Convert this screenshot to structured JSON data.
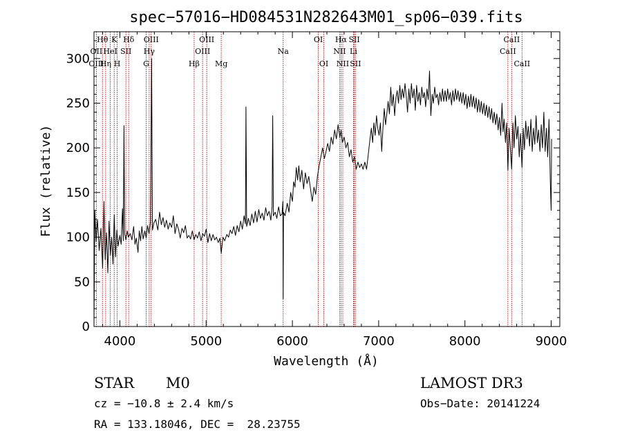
{
  "chart_data": {
    "type": "line",
    "title": "spec−57016−HD084531N282643M01_sp06−039.fits",
    "xlabel": "Wavelength (Å)",
    "ylabel": "Flux (relative)",
    "xlim": [
      3700,
      9100
    ],
    "ylim": [
      0,
      330
    ],
    "x_ticks": [
      4000,
      5000,
      6000,
      7000,
      8000,
      9000
    ],
    "y_ticks": [
      0,
      50,
      100,
      150,
      200,
      250,
      300
    ],
    "grid": false,
    "line_colors": {
      "spectrum": "#000000",
      "lines": "#c00000"
    },
    "spectral_lines": [
      {
        "label": "Hθ",
        "wavelength": 3798,
        "row": 0
      },
      {
        "label": "OII",
        "wavelength": 3727,
        "row": 1
      },
      {
        "label": "OIII",
        "wavelength": 3727,
        "row": 2
      },
      {
        "label": "K",
        "wavelength": 3934,
        "row": 0
      },
      {
        "label": "HeI",
        "wavelength": 3889,
        "row": 1
      },
      {
        "label": "Hη",
        "wavelength": 3835,
        "row": 2
      },
      {
        "label": "Hδ",
        "wavelength": 4102,
        "row": 0
      },
      {
        "label": "SII",
        "wavelength": 4070,
        "row": 1
      },
      {
        "label": "H",
        "wavelength": 3969,
        "row": 2
      },
      {
        "label": "OIII",
        "wavelength": 4363,
        "row": 0
      },
      {
        "label": "Hγ",
        "wavelength": 4340,
        "row": 1
      },
      {
        "label": "G",
        "wavelength": 4305,
        "row": 2
      },
      {
        "label": "OIII",
        "wavelength": 5007,
        "row": 0
      },
      {
        "label": "OIII",
        "wavelength": 4959,
        "row": 1
      },
      {
        "label": "Hβ",
        "wavelength": 4861,
        "row": 2
      },
      {
        "label": "Mg",
        "wavelength": 5175,
        "row": 2
      },
      {
        "label": "Na",
        "wavelength": 5893,
        "row": 1
      },
      {
        "label": "OI",
        "wavelength": 6300,
        "row": 0
      },
      {
        "label": "OI",
        "wavelength": 6364,
        "row": 2
      },
      {
        "label": "Hα",
        "wavelength": 6563,
        "row": 0
      },
      {
        "label": "SII",
        "wavelength": 6717,
        "row": 0
      },
      {
        "label": "NII",
        "wavelength": 6548,
        "row": 1
      },
      {
        "label": "Li",
        "wavelength": 6708,
        "row": 1
      },
      {
        "label": "NII",
        "wavelength": 6584,
        "row": 2
      },
      {
        "label": "SII",
        "wavelength": 6731,
        "row": 2
      },
      {
        "label": "CaII",
        "wavelength": 8542,
        "row": 0
      },
      {
        "label": "CaII",
        "wavelength": 8498,
        "row": 1
      },
      {
        "label": "CaII",
        "wavelength": 8662,
        "row": 2
      }
    ],
    "spectrum": [
      [
        3700,
        2
      ],
      [
        3710,
        130
      ],
      [
        3725,
        95
      ],
      [
        3740,
        120
      ],
      [
        3760,
        85
      ],
      [
        3780,
        110
      ],
      [
        3800,
        65
      ],
      [
        3815,
        140
      ],
      [
        3830,
        75
      ],
      [
        3845,
        105
      ],
      [
        3860,
        60
      ],
      [
        3875,
        118
      ],
      [
        3890,
        80
      ],
      [
        3905,
        100
      ],
      [
        3920,
        70
      ],
      [
        3935,
        125
      ],
      [
        3950,
        78
      ],
      [
        3965,
        108
      ],
      [
        3980,
        90
      ],
      [
        4000,
        102
      ],
      [
        4015,
        92
      ],
      [
        4030,
        132
      ],
      [
        4040,
        96
      ],
      [
        4048,
        225
      ],
      [
        4056,
        104
      ],
      [
        4070,
        97
      ],
      [
        4085,
        107
      ],
      [
        4100,
        100
      ],
      [
        4120,
        104
      ],
      [
        4140,
        97
      ],
      [
        4160,
        112
      ],
      [
        4175,
        92
      ],
      [
        4190,
        99
      ],
      [
        4210,
        83
      ],
      [
        4225,
        107
      ],
      [
        4240,
        96
      ],
      [
        4255,
        112
      ],
      [
        4270,
        98
      ],
      [
        4290,
        107
      ],
      [
        4305,
        99
      ],
      [
        4320,
        113
      ],
      [
        4338,
        104
      ],
      [
        4355,
        118
      ],
      [
        4368,
        300
      ],
      [
        4378,
        108
      ],
      [
        4395,
        116
      ],
      [
        4415,
        120
      ],
      [
        4440,
        108
      ],
      [
        4460,
        128
      ],
      [
        4480,
        114
      ],
      [
        4500,
        122
      ],
      [
        4520,
        111
      ],
      [
        4540,
        119
      ],
      [
        4560,
        109
      ],
      [
        4580,
        116
      ],
      [
        4600,
        111
      ],
      [
        4620,
        124
      ],
      [
        4640,
        104
      ],
      [
        4660,
        115
      ],
      [
        4680,
        109
      ],
      [
        4700,
        99
      ],
      [
        4720,
        110
      ],
      [
        4740,
        105
      ],
      [
        4760,
        113
      ],
      [
        4780,
        99
      ],
      [
        4800,
        102
      ],
      [
        4820,
        98
      ],
      [
        4840,
        107
      ],
      [
        4860,
        97
      ],
      [
        4880,
        103
      ],
      [
        4900,
        99
      ],
      [
        4920,
        106
      ],
      [
        4940,
        96
      ],
      [
        4960,
        104
      ],
      [
        4980,
        101
      ],
      [
        5000,
        109
      ],
      [
        5020,
        94
      ],
      [
        5040,
        104
      ],
      [
        5060,
        96
      ],
      [
        5080,
        103
      ],
      [
        5100,
        97
      ],
      [
        5120,
        100
      ],
      [
        5140,
        94
      ],
      [
        5160,
        99
      ],
      [
        5175,
        82
      ],
      [
        5195,
        100
      ],
      [
        5215,
        96
      ],
      [
        5240,
        103
      ],
      [
        5260,
        100
      ],
      [
        5280,
        108
      ],
      [
        5300,
        104
      ],
      [
        5320,
        112
      ],
      [
        5340,
        102
      ],
      [
        5360,
        113
      ],
      [
        5380,
        106
      ],
      [
        5400,
        118
      ],
      [
        5420,
        109
      ],
      [
        5440,
        124
      ],
      [
        5455,
        115
      ],
      [
        5462,
        246
      ],
      [
        5470,
        112
      ],
      [
        5490,
        121
      ],
      [
        5510,
        113
      ],
      [
        5530,
        126
      ],
      [
        5550,
        116
      ],
      [
        5570,
        129
      ],
      [
        5590,
        117
      ],
      [
        5610,
        131
      ],
      [
        5630,
        121
      ],
      [
        5650,
        127
      ],
      [
        5670,
        119
      ],
      [
        5690,
        133
      ],
      [
        5710,
        124
      ],
      [
        5730,
        129
      ],
      [
        5750,
        119
      ],
      [
        5765,
        134
      ],
      [
        5772,
        236
      ],
      [
        5780,
        124
      ],
      [
        5800,
        128
      ],
      [
        5820,
        121
      ],
      [
        5840,
        134
      ],
      [
        5860,
        124
      ],
      [
        5880,
        126
      ],
      [
        5890,
        140
      ],
      [
        5893,
        31
      ],
      [
        5897,
        128
      ],
      [
        5915,
        124
      ],
      [
        5940,
        138
      ],
      [
        5960,
        128
      ],
      [
        5980,
        150
      ],
      [
        6000,
        140
      ],
      [
        6015,
        162
      ],
      [
        6030,
        156
      ],
      [
        6045,
        178
      ],
      [
        6060,
        164
      ],
      [
        6075,
        180
      ],
      [
        6090,
        162
      ],
      [
        6110,
        175
      ],
      [
        6130,
        154
      ],
      [
        6150,
        172
      ],
      [
        6170,
        160
      ],
      [
        6190,
        168
      ],
      [
        6210,
        154
      ],
      [
        6230,
        140
      ],
      [
        6250,
        156
      ],
      [
        6270,
        148
      ],
      [
        6290,
        168
      ],
      [
        6310,
        180
      ],
      [
        6330,
        190
      ],
      [
        6350,
        200
      ],
      [
        6370,
        188
      ],
      [
        6390,
        196
      ],
      [
        6410,
        205
      ],
      [
        6430,
        196
      ],
      [
        6450,
        212
      ],
      [
        6470,
        204
      ],
      [
        6490,
        220
      ],
      [
        6510,
        210
      ],
      [
        6530,
        226
      ],
      [
        6550,
        212
      ],
      [
        6565,
        220
      ],
      [
        6580,
        206
      ],
      [
        6600,
        212
      ],
      [
        6620,
        200
      ],
      [
        6640,
        206
      ],
      [
        6660,
        190
      ],
      [
        6680,
        198
      ],
      [
        6700,
        184
      ],
      [
        6720,
        190
      ],
      [
        6740,
        176
      ],
      [
        6760,
        184
      ],
      [
        6780,
        178
      ],
      [
        6800,
        182
      ],
      [
        6820,
        176
      ],
      [
        6840,
        184
      ],
      [
        6860,
        176
      ],
      [
        6880,
        193
      ],
      [
        6900,
        210
      ],
      [
        6915,
        222
      ],
      [
        6930,
        206
      ],
      [
        6945,
        228
      ],
      [
        6960,
        214
      ],
      [
        6975,
        236
      ],
      [
        6990,
        222
      ],
      [
        7005,
        214
      ],
      [
        7020,
        228
      ],
      [
        7035,
        196
      ],
      [
        7050,
        222
      ],
      [
        7065,
        244
      ],
      [
        7080,
        226
      ],
      [
        7095,
        238
      ],
      [
        7110,
        252
      ],
      [
        7125,
        238
      ],
      [
        7140,
        268
      ],
      [
        7155,
        247
      ],
      [
        7170,
        260
      ],
      [
        7185,
        236
      ],
      [
        7200,
        256
      ],
      [
        7215,
        264
      ],
      [
        7230,
        250
      ],
      [
        7245,
        270
      ],
      [
        7260,
        254
      ],
      [
        7275,
        266
      ],
      [
        7290,
        256
      ],
      [
        7305,
        272
      ],
      [
        7320,
        258
      ],
      [
        7335,
        240
      ],
      [
        7350,
        266
      ],
      [
        7365,
        250
      ],
      [
        7380,
        272
      ],
      [
        7395,
        256
      ],
      [
        7410,
        266
      ],
      [
        7425,
        242
      ],
      [
        7440,
        270
      ],
      [
        7455,
        252
      ],
      [
        7470,
        262
      ],
      [
        7485,
        248
      ],
      [
        7500,
        268
      ],
      [
        7515,
        256
      ],
      [
        7530,
        262
      ],
      [
        7545,
        246
      ],
      [
        7560,
        266
      ],
      [
        7575,
        254
      ],
      [
        7590,
        286
      ],
      [
        7605,
        236
      ],
      [
        7620,
        260
      ],
      [
        7635,
        250
      ],
      [
        7650,
        268
      ],
      [
        7665,
        256
      ],
      [
        7680,
        260
      ],
      [
        7695,
        248
      ],
      [
        7710,
        262
      ],
      [
        7725,
        252
      ],
      [
        7740,
        266
      ],
      [
        7755,
        252
      ],
      [
        7770,
        264
      ],
      [
        7785,
        252
      ],
      [
        7800,
        266
      ],
      [
        7815,
        254
      ],
      [
        7830,
        262
      ],
      [
        7845,
        248
      ],
      [
        7860,
        264
      ],
      [
        7875,
        252
      ],
      [
        7890,
        266
      ],
      [
        7905,
        254
      ],
      [
        7920,
        264
      ],
      [
        7935,
        252
      ],
      [
        7950,
        262
      ],
      [
        7965,
        250
      ],
      [
        7980,
        262
      ],
      [
        7995,
        248
      ],
      [
        8010,
        260
      ],
      [
        8025,
        244
      ],
      [
        8040,
        258
      ],
      [
        8055,
        246
      ],
      [
        8070,
        260
      ],
      [
        8085,
        246
      ],
      [
        8100,
        258
      ],
      [
        8115,
        244
      ],
      [
        8130,
        256
      ],
      [
        8145,
        240
      ],
      [
        8160,
        254
      ],
      [
        8175,
        240
      ],
      [
        8190,
        252
      ],
      [
        8205,
        238
      ],
      [
        8220,
        250
      ],
      [
        8235,
        236
      ],
      [
        8250,
        248
      ],
      [
        8265,
        234
      ],
      [
        8280,
        246
      ],
      [
        8295,
        232
      ],
      [
        8310,
        244
      ],
      [
        8325,
        228
      ],
      [
        8340,
        240
      ],
      [
        8355,
        226
      ],
      [
        8370,
        238
      ],
      [
        8385,
        220
      ],
      [
        8400,
        234
      ],
      [
        8415,
        214
      ],
      [
        8430,
        250
      ],
      [
        8442,
        218
      ],
      [
        8455,
        232
      ],
      [
        8470,
        206
      ],
      [
        8485,
        228
      ],
      [
        8498,
        175
      ],
      [
        8512,
        222
      ],
      [
        8526,
        200
      ],
      [
        8542,
        176
      ],
      [
        8556,
        228
      ],
      [
        8570,
        200
      ],
      [
        8585,
        236
      ],
      [
        8600,
        210
      ],
      [
        8615,
        224
      ],
      [
        8630,
        190
      ],
      [
        8645,
        216
      ],
      [
        8662,
        178
      ],
      [
        8676,
        222
      ],
      [
        8690,
        198
      ],
      [
        8705,
        230
      ],
      [
        8720,
        210
      ],
      [
        8735,
        224
      ],
      [
        8750,
        202
      ],
      [
        8765,
        232
      ],
      [
        8780,
        196
      ],
      [
        8795,
        222
      ],
      [
        8810,
        204
      ],
      [
        8825,
        236
      ],
      [
        8840,
        206
      ],
      [
        8855,
        220
      ],
      [
        8870,
        196
      ],
      [
        8885,
        226
      ],
      [
        8900,
        200
      ],
      [
        8915,
        240
      ],
      [
        8930,
        196
      ],
      [
        8945,
        222
      ],
      [
        8960,
        190
      ],
      [
        8975,
        232
      ],
      [
        8990,
        160
      ],
      [
        9000,
        130
      ],
      [
        9005,
        210
      ]
    ]
  },
  "info": {
    "object_type": "STAR",
    "subclass": "M0",
    "survey": "LAMOST DR3",
    "redshift": "cz = −10.8 ± 2.4 km/s",
    "obs_date": "Obs−Date: 20141224",
    "coords": "RA = 133.18046, DEC =  28.23755"
  }
}
